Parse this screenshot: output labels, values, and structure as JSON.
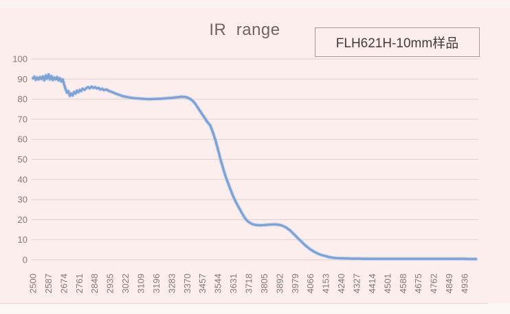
{
  "title": "IR  range",
  "annotation_box": {
    "label": "FLH621H-10mm样品"
  },
  "colors": {
    "background": "#fceeed",
    "line": "#7da3d6",
    "line_halo": "#b6cbe7",
    "gridline": "#ddd1d0",
    "axis_text": "#847878",
    "title_text": "#6e6464"
  },
  "chart_data": {
    "type": "line",
    "title": "IR range",
    "xlabel": "",
    "ylabel": "",
    "xlim": [
      2500,
      5000
    ],
    "ylim": [
      0,
      100
    ],
    "grid": "horizontal",
    "legend_position": "top-right-box",
    "x_ticks": [
      2500,
      2587,
      2674,
      2761,
      2848,
      2935,
      3022,
      3109,
      3196,
      3283,
      3370,
      3457,
      3544,
      3631,
      3718,
      3805,
      3892,
      3979,
      4066,
      4153,
      4240,
      4327,
      4414,
      4501,
      4588,
      4675,
      4762,
      4849,
      4936
    ],
    "y_ticks": [
      0,
      10,
      20,
      30,
      40,
      50,
      60,
      70,
      80,
      90,
      100
    ],
    "series": [
      {
        "name": "FLH621H-10mm样品",
        "color": "#7da3d6",
        "points": [
          [
            2500,
            90.3
          ],
          [
            2508,
            91.2
          ],
          [
            2516,
            89.6
          ],
          [
            2524,
            90.8
          ],
          [
            2532,
            89.8
          ],
          [
            2540,
            91.0
          ],
          [
            2548,
            90.0
          ],
          [
            2556,
            91.3
          ],
          [
            2564,
            89.4
          ],
          [
            2572,
            91.8
          ],
          [
            2580,
            90.2
          ],
          [
            2588,
            92.3
          ],
          [
            2596,
            89.8
          ],
          [
            2604,
            91.5
          ],
          [
            2612,
            89.5
          ],
          [
            2620,
            90.8
          ],
          [
            2628,
            89.8
          ],
          [
            2636,
            91.0
          ],
          [
            2644,
            89.3
          ],
          [
            2652,
            90.4
          ],
          [
            2660,
            88.8
          ],
          [
            2668,
            89.8
          ],
          [
            2676,
            87.2
          ],
          [
            2684,
            85.0
          ],
          [
            2692,
            83.2
          ],
          [
            2700,
            84.0
          ],
          [
            2708,
            81.6
          ],
          [
            2716,
            82.8
          ],
          [
            2724,
            81.8
          ],
          [
            2732,
            83.6
          ],
          [
            2740,
            82.8
          ],
          [
            2748,
            84.2
          ],
          [
            2756,
            83.4
          ],
          [
            2764,
            84.6
          ],
          [
            2772,
            84.0
          ],
          [
            2780,
            85.2
          ],
          [
            2790,
            84.6
          ],
          [
            2800,
            85.4
          ],
          [
            2810,
            86.0
          ],
          [
            2820,
            85.4
          ],
          [
            2830,
            86.2
          ],
          [
            2840,
            85.6
          ],
          [
            2850,
            86.0
          ],
          [
            2860,
            85.3
          ],
          [
            2870,
            85.6
          ],
          [
            2880,
            84.8
          ],
          [
            2890,
            85.2
          ],
          [
            2900,
            84.5
          ],
          [
            2915,
            84.8
          ],
          [
            2930,
            84.0
          ],
          [
            2945,
            83.6
          ],
          [
            2960,
            83.0
          ],
          [
            2975,
            82.5
          ],
          [
            2990,
            82.0
          ],
          [
            3005,
            81.5
          ],
          [
            3022,
            81.2
          ],
          [
            3040,
            80.9
          ],
          [
            3060,
            80.6
          ],
          [
            3080,
            80.4
          ],
          [
            3100,
            80.3
          ],
          [
            3130,
            80.1
          ],
          [
            3160,
            80.0
          ],
          [
            3190,
            80.1
          ],
          [
            3220,
            80.2
          ],
          [
            3250,
            80.4
          ],
          [
            3280,
            80.6
          ],
          [
            3310,
            80.9
          ],
          [
            3340,
            81.2
          ],
          [
            3365,
            81.0
          ],
          [
            3385,
            80.2
          ],
          [
            3400,
            79.3
          ],
          [
            3415,
            77.8
          ],
          [
            3430,
            75.8
          ],
          [
            3445,
            73.8
          ],
          [
            3457,
            72.2
          ],
          [
            3470,
            70.5
          ],
          [
            3485,
            68.5
          ],
          [
            3500,
            67.0
          ],
          [
            3515,
            63.5
          ],
          [
            3530,
            59.5
          ],
          [
            3544,
            55.0
          ],
          [
            3560,
            49.5
          ],
          [
            3575,
            45.0
          ],
          [
            3590,
            40.8
          ],
          [
            3605,
            37.2
          ],
          [
            3620,
            33.8
          ],
          [
            3631,
            31.4
          ],
          [
            3645,
            28.8
          ],
          [
            3660,
            26.3
          ],
          [
            3675,
            24.0
          ],
          [
            3690,
            21.6
          ],
          [
            3705,
            19.8
          ],
          [
            3718,
            18.8
          ],
          [
            3735,
            17.9
          ],
          [
            3750,
            17.5
          ],
          [
            3765,
            17.3
          ],
          [
            3780,
            17.2
          ],
          [
            3805,
            17.3
          ],
          [
            3830,
            17.5
          ],
          [
            3850,
            17.6
          ],
          [
            3870,
            17.6
          ],
          [
            3892,
            17.4
          ],
          [
            3910,
            16.9
          ],
          [
            3930,
            16.0
          ],
          [
            3950,
            14.7
          ],
          [
            3965,
            13.4
          ],
          [
            3979,
            12.2
          ],
          [
            3995,
            10.8
          ],
          [
            4010,
            9.5
          ],
          [
            4025,
            8.2
          ],
          [
            4040,
            7.0
          ],
          [
            4055,
            5.9
          ],
          [
            4066,
            5.2
          ],
          [
            4080,
            4.4
          ],
          [
            4095,
            3.7
          ],
          [
            4110,
            3.0
          ],
          [
            4125,
            2.5
          ],
          [
            4140,
            2.1
          ],
          [
            4153,
            1.8
          ],
          [
            4170,
            1.4
          ],
          [
            4190,
            1.1
          ],
          [
            4210,
            0.9
          ],
          [
            4240,
            0.8
          ],
          [
            4270,
            0.7
          ],
          [
            4300,
            0.6
          ],
          [
            4327,
            0.6
          ],
          [
            4370,
            0.5
          ],
          [
            4414,
            0.5
          ],
          [
            4460,
            0.5
          ],
          [
            4501,
            0.5
          ],
          [
            4550,
            0.5
          ],
          [
            4588,
            0.5
          ],
          [
            4630,
            0.5
          ],
          [
            4675,
            0.5
          ],
          [
            4720,
            0.5
          ],
          [
            4762,
            0.5
          ],
          [
            4800,
            0.5
          ],
          [
            4849,
            0.5
          ],
          [
            4890,
            0.5
          ],
          [
            4936,
            0.5
          ],
          [
            4970,
            0.4
          ],
          [
            5000,
            0.4
          ]
        ]
      }
    ]
  }
}
